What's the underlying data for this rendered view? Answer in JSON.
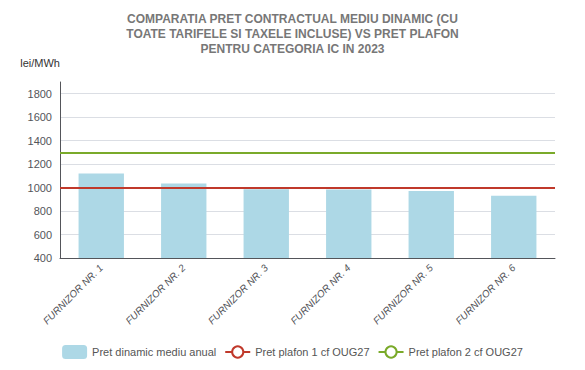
{
  "chart_data": {
    "type": "bar",
    "title": "COMPARATIA PRET CONTRACTUAL MEDIU DINAMIC (CU\nTOATE TARIFELE SI TAXELE INCLUSE) VS PRET PLAFON\nPENTRU CATEGORIA IC IN 2023",
    "ylabel": "lei/MWh",
    "categories": [
      "FURNIZOR NR. 1",
      "FURNIZOR NR. 2",
      "FURNIZOR NR. 3",
      "FURNIZOR NR. 4",
      "FURNIZOR NR. 5",
      "FURNIZOR NR. 6"
    ],
    "series": [
      {
        "name": "Pret dinamic mediu anual",
        "type": "bar",
        "color": "#add8e6",
        "values": [
          1120,
          1035,
          985,
          983,
          970,
          930
        ]
      },
      {
        "name": "Pret plafon 1 cf OUG27",
        "type": "hline",
        "color": "#c0392b",
        "value": 1000
      },
      {
        "name": "Pret plafon 2 cf OUG27",
        "type": "hline",
        "color": "#7aaa2a",
        "value": 1300
      }
    ],
    "ylim": [
      400,
      1900
    ],
    "yticks": [
      400,
      600,
      800,
      1000,
      1200,
      1400,
      1600,
      1800
    ],
    "grid": true,
    "legend": "bottom"
  }
}
